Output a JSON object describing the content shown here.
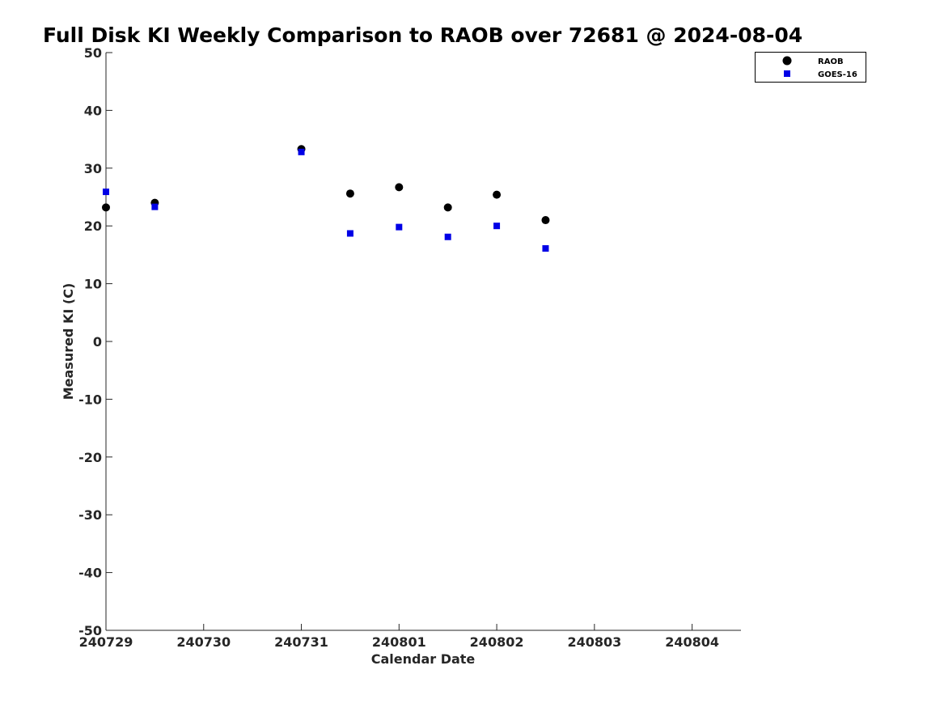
{
  "chart_data": {
    "type": "scatter",
    "title": "Full Disk KI Weekly Comparison to RAOB over 72681 @ 2024-08-04",
    "xlabel": "Calendar Date",
    "ylabel": "Measured KI (C)",
    "x_ticks": [
      "240729",
      "240730",
      "240731",
      "240801",
      "240802",
      "240803",
      "240804"
    ],
    "y_ticks": [
      "50",
      "40",
      "30",
      "20",
      "10",
      "0",
      "-10",
      "-20",
      "-30",
      "-40",
      "-50"
    ],
    "xlim": [
      0,
      6.5
    ],
    "ylim": [
      -50,
      50
    ],
    "grid": false,
    "legend_position": "top-right",
    "series": [
      {
        "name": "RAOB",
        "marker": "circle",
        "color": "#000000",
        "x": [
          0,
          0.5,
          2,
          2.5,
          3,
          3.5,
          4,
          4.5
        ],
        "y": [
          23.2,
          24.0,
          33.3,
          25.6,
          26.7,
          23.2,
          25.4,
          21.0
        ]
      },
      {
        "name": "GOES-16",
        "marker": "square",
        "color": "#0000e6",
        "x": [
          0,
          0.5,
          2,
          2.5,
          3,
          3.5,
          4,
          4.5
        ],
        "y": [
          25.9,
          23.3,
          32.8,
          18.7,
          19.8,
          18.1,
          20.0,
          16.1
        ]
      }
    ]
  }
}
